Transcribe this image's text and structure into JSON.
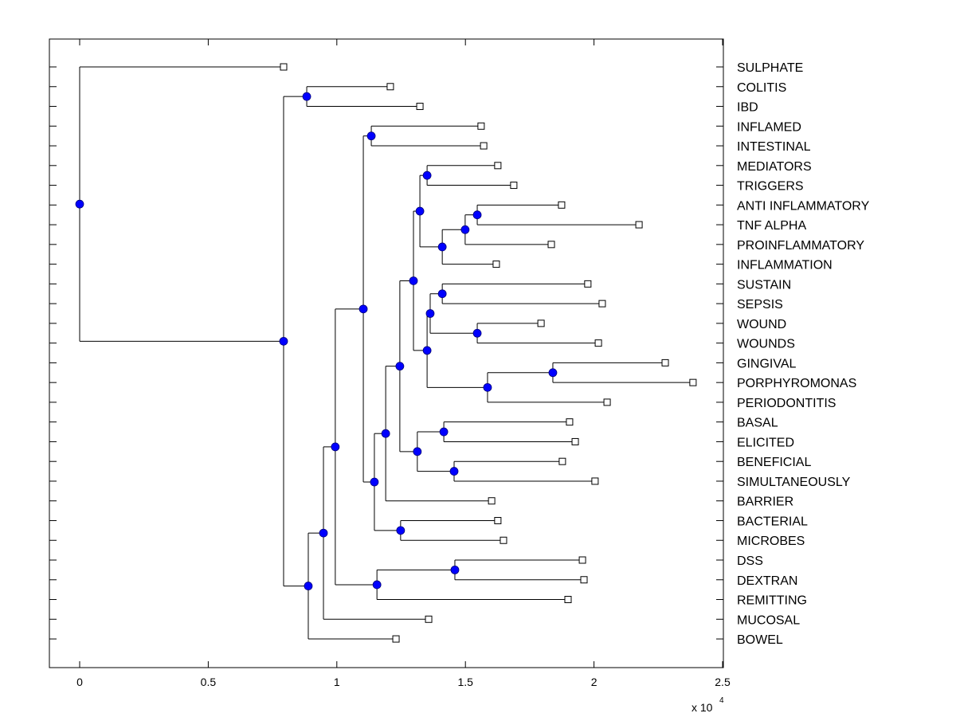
{
  "chart_data": {
    "type": "dendrogram",
    "title": "",
    "xlabel": "",
    "ylabel": "",
    "x_multiplier_label": "x 10",
    "x_multiplier_exponent": "4",
    "xlim": [
      -0.12,
      2.52
    ],
    "xticks": [
      0,
      0.5,
      1,
      1.5,
      2,
      2.5
    ],
    "xtick_labels": [
      "0",
      "0.5",
      "1",
      "1.5",
      "2",
      "2.5"
    ],
    "grid": false,
    "colors": {
      "node": "#0000ff",
      "line": "#000000",
      "leaf_marker": "#ffffff"
    },
    "leaves": [
      {
        "label": "SULPHATE",
        "x": 0.793
      },
      {
        "label": "COLITIS",
        "x": 1.208
      },
      {
        "label": "IBD",
        "x": 1.323
      },
      {
        "label": "INFLAMED",
        "x": 1.561
      },
      {
        "label": "INTESTINAL",
        "x": 1.571
      },
      {
        "label": "MEDIATORS",
        "x": 1.626
      },
      {
        "label": "TRIGGERS",
        "x": 1.688
      },
      {
        "label": "ANTI INFLAMMATORY",
        "x": 1.874
      },
      {
        "label": "TNF ALPHA",
        "x": 2.175
      },
      {
        "label": "PROINFLAMMATORY",
        "x": 1.834
      },
      {
        "label": "INFLAMMATION",
        "x": 1.62
      },
      {
        "label": "SUSTAIN",
        "x": 1.976
      },
      {
        "label": "SEPSIS",
        "x": 2.032
      },
      {
        "label": "WOUND",
        "x": 1.794
      },
      {
        "label": "WOUNDS",
        "x": 2.017
      },
      {
        "label": "GINGIVAL",
        "x": 2.277
      },
      {
        "label": "PORPHYROMONAS",
        "x": 2.385
      },
      {
        "label": "PERIODONTITIS",
        "x": 2.051
      },
      {
        "label": "BASAL",
        "x": 1.905
      },
      {
        "label": "ELICITED",
        "x": 1.927
      },
      {
        "label": "BENEFICIAL",
        "x": 1.877
      },
      {
        "label": "SIMULTANEOUSLY",
        "x": 2.004
      },
      {
        "label": "BARRIER",
        "x": 1.602
      },
      {
        "label": "BACTERIAL",
        "x": 1.626
      },
      {
        "label": "MICROBES",
        "x": 1.648
      },
      {
        "label": "DSS",
        "x": 1.955
      },
      {
        "label": "DEXTRAN",
        "x": 1.961
      },
      {
        "label": "REMITTING",
        "x": 1.899
      },
      {
        "label": "MUCOSAL",
        "x": 1.357
      },
      {
        "label": "BOWEL",
        "x": 1.23
      }
    ],
    "nodes": [
      {
        "id": "n_colitis_ibd",
        "x": 0.883,
        "children": [
          "L1",
          "L2"
        ]
      },
      {
        "id": "n_inflamed_intestinal",
        "x": 1.134,
        "children": [
          "L3",
          "L4"
        ]
      },
      {
        "id": "n_mediators_triggers",
        "x": 1.351,
        "children": [
          "L5",
          "L6"
        ]
      },
      {
        "id": "n_anti_tnf",
        "x": 1.546,
        "children": [
          "L7",
          "L8"
        ]
      },
      {
        "id": "n_anti_tnf_proinf",
        "x": 1.499,
        "children": [
          "n_anti_tnf",
          "L9"
        ]
      },
      {
        "id": "n_proinf_inflammation",
        "x": 1.41,
        "children": [
          "n_anti_tnf_proinf",
          "L10"
        ]
      },
      {
        "id": "n_mediators_group",
        "x": 1.323,
        "children": [
          "n_mediators_triggers",
          "n_proinf_inflammation"
        ]
      },
      {
        "id": "n_sustain_sepsis",
        "x": 1.41,
        "children": [
          "L11",
          "L12"
        ]
      },
      {
        "id": "n_wound_wounds",
        "x": 1.546,
        "children": [
          "L13",
          "L14"
        ]
      },
      {
        "id": "n_sustain_wounds",
        "x": 1.363,
        "children": [
          "n_sustain_sepsis",
          "n_wound_wounds"
        ]
      },
      {
        "id": "n_gingival_porph",
        "x": 1.84,
        "children": [
          "L15",
          "L16"
        ]
      },
      {
        "id": "n_gingival_perio",
        "x": 1.586,
        "children": [
          "n_gingival_porph",
          "L17"
        ]
      },
      {
        "id": "n_sustain_perio",
        "x": 1.351,
        "children": [
          "n_sustain_wounds",
          "n_gingival_perio"
        ]
      },
      {
        "id": "n_mediators_perio",
        "x": 1.298,
        "children": [
          "n_mediators_group",
          "n_sustain_perio"
        ]
      },
      {
        "id": "n_basal_elicited",
        "x": 1.416,
        "children": [
          "L18",
          "L19"
        ]
      },
      {
        "id": "n_benef_simul",
        "x": 1.456,
        "children": [
          "L20",
          "L21"
        ]
      },
      {
        "id": "n_basal_simul",
        "x": 1.313,
        "children": [
          "n_basal_elicited",
          "n_benef_simul"
        ]
      },
      {
        "id": "n_mediators_simul",
        "x": 1.245,
        "children": [
          "n_mediators_perio",
          "n_basal_simul"
        ]
      },
      {
        "id": "n_plus_barrier",
        "x": 1.19,
        "children": [
          "n_mediators_simul",
          "L22"
        ]
      },
      {
        "id": "n_bact_microbes",
        "x": 1.248,
        "children": [
          "L23",
          "L24"
        ]
      },
      {
        "id": "n_barrier_microbes",
        "x": 1.146,
        "children": [
          "n_plus_barrier",
          "n_bact_microbes"
        ]
      },
      {
        "id": "n_inflamed_microbes",
        "x": 1.103,
        "children": [
          "n_inflamed_intestinal",
          "n_barrier_microbes"
        ]
      },
      {
        "id": "n_dss_dextran",
        "x": 1.459,
        "children": [
          "L25",
          "L26"
        ]
      },
      {
        "id": "n_dss_remitting",
        "x": 1.156,
        "children": [
          "n_dss_dextran",
          "L27"
        ]
      },
      {
        "id": "n_inflamed_remitting",
        "x": 0.994,
        "children": [
          "n_inflamed_microbes",
          "n_dss_remitting"
        ]
      },
      {
        "id": "n_plus_mucosal",
        "x": 0.948,
        "children": [
          "n_inflamed_remitting",
          "L28"
        ]
      },
      {
        "id": "n_plus_bowel",
        "x": 0.889,
        "children": [
          "n_plus_mucosal",
          "L29"
        ]
      },
      {
        "id": "n_colitis_bowel",
        "x": 0.793,
        "children": [
          "n_colitis_ibd",
          "n_plus_bowel"
        ]
      },
      {
        "id": "n_root",
        "x": 0.0,
        "children": [
          "L0",
          "n_colitis_bowel"
        ]
      }
    ]
  }
}
